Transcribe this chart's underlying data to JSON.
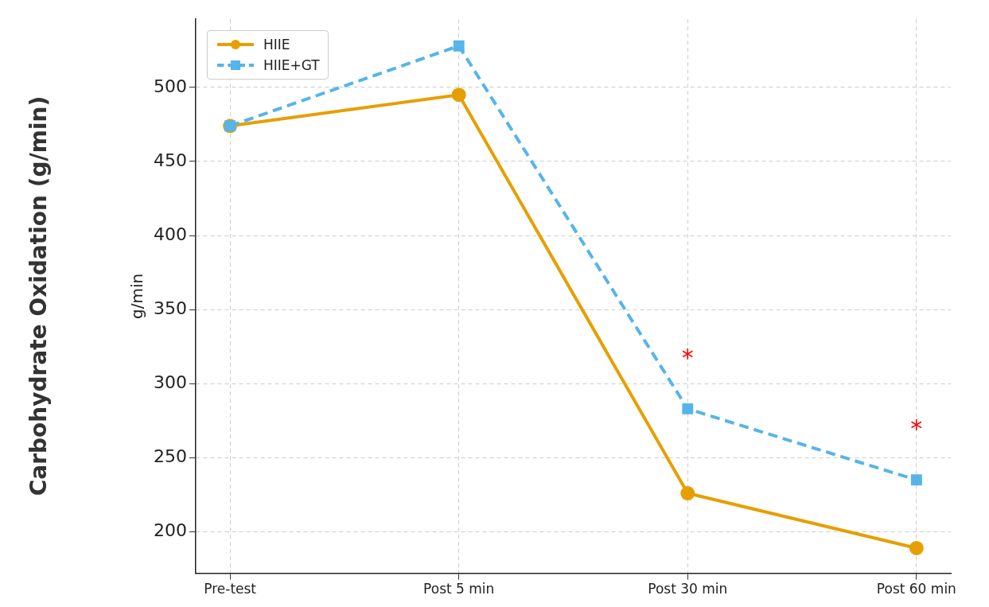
{
  "chart_data": {
    "type": "line",
    "title": "Carbohydrate Oxidation (g/min)",
    "ylabel": "g/min",
    "categories": [
      "Pre-test",
      "Post 5 min",
      "Post 30 min",
      "Post 60 min"
    ],
    "series": [
      {
        "name": "HIIE",
        "color": "#e69f00",
        "values": [
          474,
          495,
          226,
          189
        ],
        "marker": "circle",
        "line_style": "solid"
      },
      {
        "name": "HIIE+GT",
        "color": "#56b4e9",
        "values": [
          474,
          528,
          283,
          235
        ],
        "marker": "square",
        "line_style": "dashed"
      }
    ],
    "ylim": [
      172,
      546
    ],
    "yticks": [
      200,
      250,
      300,
      350,
      400,
      450,
      500
    ],
    "grid": true,
    "legend": "top left",
    "annotations": [
      "*",
      "*"
    ]
  }
}
